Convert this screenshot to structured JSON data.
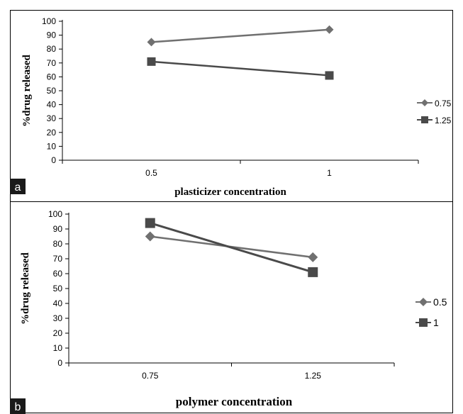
{
  "chart_data": [
    {
      "panel": "a",
      "type": "line",
      "categories": [
        "0.5",
        "1"
      ],
      "xlabel": "plasticizer concentration",
      "ylabel": "%drug released",
      "ylim": [
        0,
        100
      ],
      "yticks": [
        0,
        10,
        20,
        30,
        40,
        50,
        60,
        70,
        80,
        90,
        100
      ],
      "legend_position": "right",
      "series": [
        {
          "name": "0.75",
          "marker": "diamond",
          "color": "#707070",
          "values": [
            85,
            94
          ]
        },
        {
          "name": "1.25",
          "marker": "square",
          "color": "#4a4a4a",
          "values": [
            71,
            61
          ]
        }
      ]
    },
    {
      "panel": "b",
      "type": "line",
      "categories": [
        "0.75",
        "1.25"
      ],
      "xlabel": "polymer concentration",
      "ylabel": "%drug released",
      "ylim": [
        0,
        100
      ],
      "yticks": [
        0,
        10,
        20,
        30,
        40,
        50,
        60,
        70,
        80,
        90,
        100
      ],
      "legend_position": "right",
      "series": [
        {
          "name": "0.5",
          "marker": "diamond",
          "color": "#707070",
          "values": [
            85,
            71
          ]
        },
        {
          "name": "1",
          "marker": "square",
          "color": "#4a4a4a",
          "values": [
            94,
            61
          ]
        }
      ]
    }
  ],
  "colors": {
    "frame": "#000000",
    "panel_tag_bg": "#1a1a1a"
  }
}
